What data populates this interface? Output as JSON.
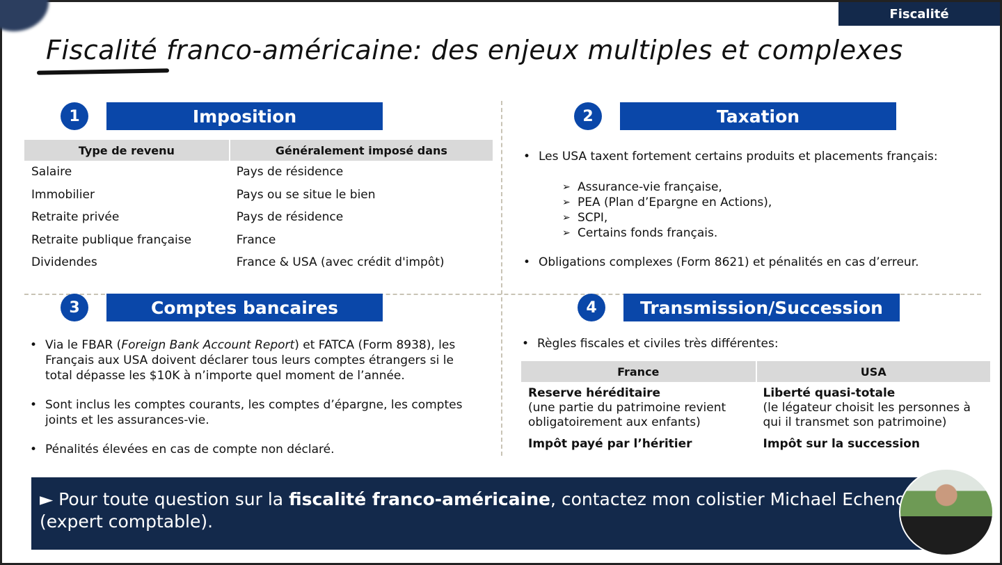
{
  "tag": "Fiscalité",
  "title": "Fiscalité franco-américaine: des enjeux multiples et complexes",
  "colors": {
    "accent": "#0a47a9",
    "navy": "#13294b"
  },
  "s1": {
    "num": "1",
    "title": "Imposition",
    "headers": [
      "Type de revenu",
      "Généralement imposé dans"
    ],
    "rows": [
      [
        "Salaire",
        "Pays de résidence"
      ],
      [
        "Immobilier",
        "Pays ou se situe le bien"
      ],
      [
        "Retraite privée",
        "Pays de résidence"
      ],
      [
        "Retraite publique française",
        "France"
      ],
      [
        "Dividendes",
        "France & USA (avec crédit d'impôt)"
      ]
    ]
  },
  "s2": {
    "num": "2",
    "title": "Taxation",
    "b1": "Les USA taxent fortement certains produits et placements français:",
    "sub": [
      "Assurance-vie française,",
      "PEA (Plan d’Epargne en Actions),",
      "SCPI,",
      "Certains fonds français."
    ],
    "b2": "Obligations complexes (Form 8621) et pénalités en cas d’erreur."
  },
  "s3": {
    "num": "3",
    "title": "Comptes bancaires",
    "b1a": "Via le FBAR (",
    "b1i": "Foreign Bank Account Report",
    "b1b": ") et FATCA (Form 8938), les Français aux USA doivent déclarer tous leurs comptes étrangers si le total dépasse les $10K à n’importe quel moment de l’année.",
    "b2": "Sont inclus les comptes courants, les comptes d’épargne, les comptes joints et les assurances-vie.",
    "b3": "Pénalités élevées en cas de compte non déclaré."
  },
  "s4": {
    "num": "4",
    "title": "Transmission/Succession",
    "b1": "Règles fiscales et civiles très différentes:",
    "headers": [
      "France",
      "USA"
    ],
    "r1": [
      {
        "bold": "Reserve héréditaire",
        "text": "(une partie du patrimoine revient obligatoirement aux enfants)"
      },
      {
        "bold": "Liberté quasi-totale",
        "text": "(le légateur choisit les personnes à qui il transmet son patrimoine)"
      }
    ],
    "r2": [
      "Impôt payé par l’héritier",
      "Impôt sur la succession"
    ]
  },
  "banner": {
    "pre": "► Pour toute question sur la ",
    "bold": "fiscalité franco-américaine",
    "post": ", contactez mon colistier Michael Echenoz (expert comptable)."
  }
}
